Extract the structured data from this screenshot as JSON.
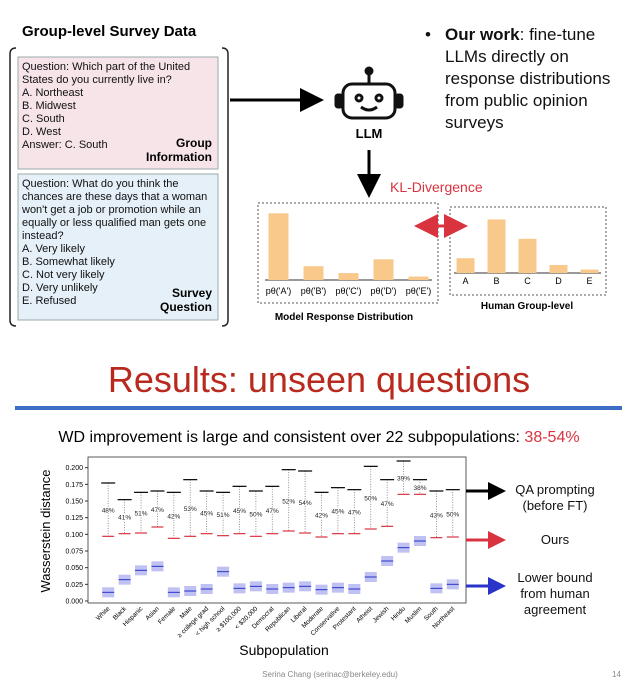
{
  "diagram": {
    "title": "Group-level Survey Data",
    "group_information": {
      "question": "Question: Which part of the United States do you currently live in?",
      "options": [
        "A. Northeast",
        "B. Midwest",
        "C. South",
        "D. West"
      ],
      "answer": "Answer: C. South",
      "label": "Group Information"
    },
    "survey_question": {
      "question": "Question: What do you think the chances are these days that a woman won't get a job or promotion while an equally or less qualified man gets one instead?",
      "options": [
        "A. Very likely",
        "B. Somewhat likely",
        "C. Not very likely",
        "D. Very unlikely",
        "E. Refused"
      ],
      "label": "Survey Question"
    },
    "llm_label": "LLM",
    "divergence_label": "KL-Divergence",
    "bullet": {
      "emphasis": "Our work",
      "text": ": fine-tune LLMs directly on response distributions from public opinion surveys"
    }
  },
  "slide_title": "Results: unseen questions",
  "chart_data": [
    {
      "type": "bar",
      "title": "Model Response Distribution",
      "categories": [
        "pθ('A')",
        "pθ('B')",
        "pθ('C')",
        "pθ('D')",
        "pθ('E')"
      ],
      "values": [
        0.58,
        0.12,
        0.06,
        0.18,
        0.03
      ],
      "color": "#f8c98b",
      "ylim": [
        0,
        0.6
      ]
    },
    {
      "type": "bar",
      "title": "Human Group-level",
      "categories": [
        "A",
        "B",
        "C",
        "D",
        "E"
      ],
      "values": [
        0.13,
        0.47,
        0.3,
        0.07,
        0.03
      ],
      "color": "#f8c98b",
      "ylim": [
        0,
        0.5
      ]
    },
    {
      "type": "range",
      "subtitle": "WD improvement is large and consistent over 22 subpopulations: ",
      "subtitle_highlight": "38-54%",
      "ylabel": "Wasserstein distance",
      "xlabel": "Subpopulation",
      "categories": [
        "White",
        "Black",
        "Hispanic",
        "Asian",
        "Female",
        "Male",
        "≥ college grad",
        "< high school",
        "≥ $100,000",
        "< $30,000",
        "Democrat",
        "Republican",
        "Liberal",
        "Moderate",
        "Conservative",
        "Protestant",
        "Atheist",
        "Jewish",
        "Hindu",
        "Muslim",
        "South",
        "Northeast"
      ],
      "series": [
        {
          "name": "QA prompting (before FT)",
          "color": "#000000",
          "values": [
            0.177,
            0.152,
            0.163,
            0.165,
            0.163,
            0.182,
            0.165,
            0.163,
            0.172,
            0.165,
            0.172,
            0.197,
            0.195,
            0.163,
            0.17,
            0.167,
            0.202,
            0.182,
            0.21,
            0.182,
            0.165,
            0.167
          ]
        },
        {
          "name": "Ours",
          "color": "#d9333f",
          "values": [
            0.097,
            0.101,
            0.102,
            0.111,
            0.094,
            0.097,
            0.101,
            0.098,
            0.101,
            0.097,
            0.101,
            0.105,
            0.102,
            0.096,
            0.101,
            0.101,
            0.108,
            0.112,
            0.16,
            0.16,
            0.095,
            0.096
          ]
        },
        {
          "name": "Lower bound from human agreement",
          "color": "#2a34c8",
          "values": [
            0.013,
            0.032,
            0.046,
            0.052,
            0.013,
            0.015,
            0.018,
            0.044,
            0.019,
            0.022,
            0.018,
            0.02,
            0.022,
            0.017,
            0.02,
            0.018,
            0.036,
            0.06,
            0.08,
            0.09,
            0.019,
            0.025
          ]
        }
      ],
      "improvement_labels": [
        "48%",
        "41%",
        "51%",
        "47%",
        "42%",
        "53%",
        "45%",
        "51%",
        "45%",
        "50%",
        "47%",
        "52%",
        "54%",
        "42%",
        "45%",
        "47%",
        "50%",
        "47%",
        "39%",
        "38%",
        "43%",
        "50%"
      ],
      "ylim": [
        0,
        0.21
      ],
      "yticks": [
        {
          "value": 0,
          "label": "0.000"
        },
        {
          "value": 0.025,
          "label": "0.025"
        },
        {
          "value": 0.05,
          "label": "0.050"
        },
        {
          "value": 0.075,
          "label": "0.075"
        },
        {
          "value": 0.1,
          "label": "0.100"
        },
        {
          "value": 0.125,
          "label": "0.125"
        },
        {
          "value": 0.15,
          "label": "0.150"
        },
        {
          "value": 0.175,
          "label": "0.175"
        },
        {
          "value": 0.2,
          "label": "0.200"
        }
      ]
    }
  ],
  "footer": {
    "author": "Serina Chang (serinac@berkeley.edu)",
    "page": 14
  }
}
